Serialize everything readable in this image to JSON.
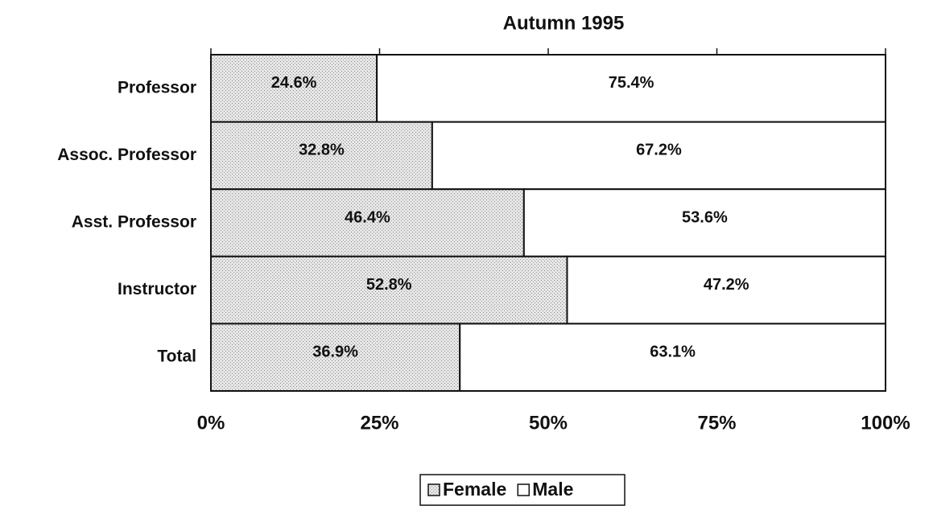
{
  "chart_data": {
    "type": "stacked-barh",
    "title": "Autumn 1995",
    "categories": [
      "Professor",
      "Assoc. Professor",
      "Asst. Professor",
      "Instructor",
      "Total"
    ],
    "series": [
      {
        "name": "Female",
        "color": "#d9d9d9",
        "values": [
          24.6,
          32.8,
          46.4,
          52.8,
          36.9
        ],
        "value_labels": [
          "24.6%",
          "32.8%",
          "46.4%",
          "52.8%",
          "36.9%"
        ]
      },
      {
        "name": "Male",
        "color": "#ffffff",
        "values": [
          75.4,
          67.2,
          53.6,
          47.2,
          63.1
        ],
        "value_labels": [
          "75.4%",
          "67.2%",
          "53.6%",
          "47.2%",
          "63.1%"
        ]
      }
    ],
    "xlim": [
      0,
      100
    ],
    "xticks": [
      {
        "value": 0,
        "label": "0%"
      },
      {
        "value": 25,
        "label": "25%"
      },
      {
        "value": 50,
        "label": "50%"
      },
      {
        "value": 75,
        "label": "75%"
      },
      {
        "value": 100,
        "label": "100%"
      }
    ],
    "grid": false
  }
}
